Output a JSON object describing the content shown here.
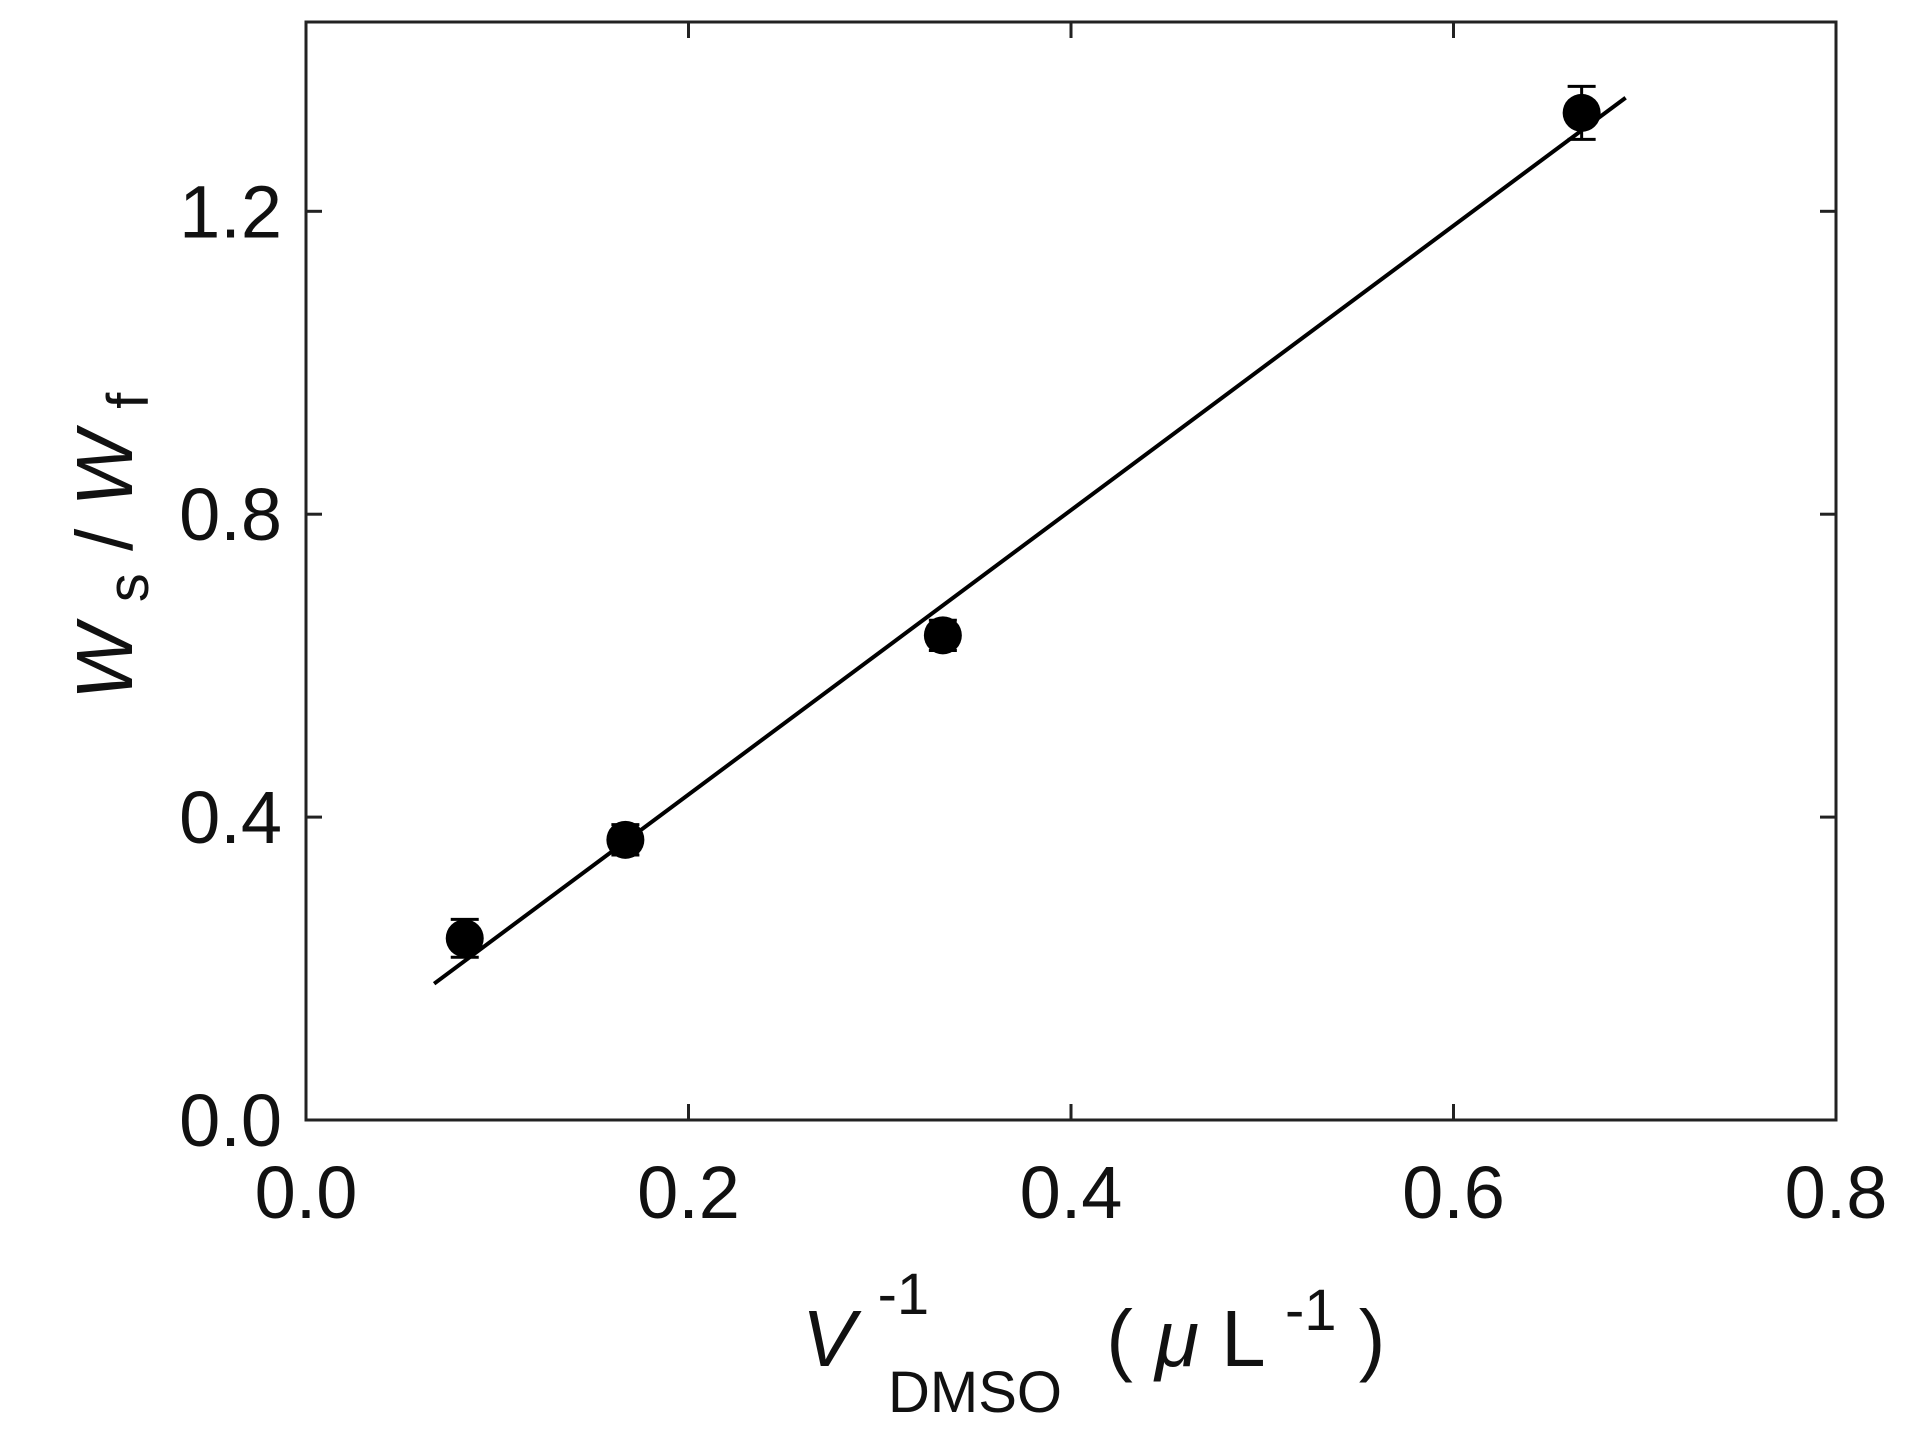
{
  "chart_data": {
    "type": "scatter",
    "title": "",
    "xlabel": {
      "main": "V",
      "superscript": "-1",
      "subscript": "DMSO",
      "unit_open": "(",
      "unit_mu": "μ",
      "unit_L": "L",
      "unit_superscript": "-1",
      "unit_close": ")"
    },
    "ylabel": {
      "num_main": "W",
      "num_sub": "s",
      "slash": " / ",
      "den_main": "W",
      "den_sub": "f"
    },
    "xlim": [
      0.0,
      0.8
    ],
    "ylim": [
      0.0,
      1.45
    ],
    "xticks": [
      0.0,
      0.2,
      0.4,
      0.6,
      0.8
    ],
    "xtick_labels": [
      "0.0",
      "0.2",
      "0.4",
      "0.6",
      "0.8"
    ],
    "yticks": [
      0.0,
      0.4,
      0.8,
      1.2
    ],
    "ytick_labels": [
      "0.0",
      "0.4",
      "0.8",
      "1.2"
    ],
    "grid": false,
    "series": [
      {
        "x": [
          0.083,
          0.167,
          0.333,
          0.667
        ],
        "y": [
          0.24,
          0.37,
          0.64,
          1.33
        ],
        "yerr": [
          0.025,
          0.02,
          0.02,
          0.035
        ]
      }
    ],
    "fit_line": {
      "x": [
        0.067,
        0.69
      ],
      "y": [
        0.18,
        1.35
      ]
    },
    "colors": {
      "marker": "#000000",
      "line": "#000000",
      "axes": "#222222"
    }
  }
}
